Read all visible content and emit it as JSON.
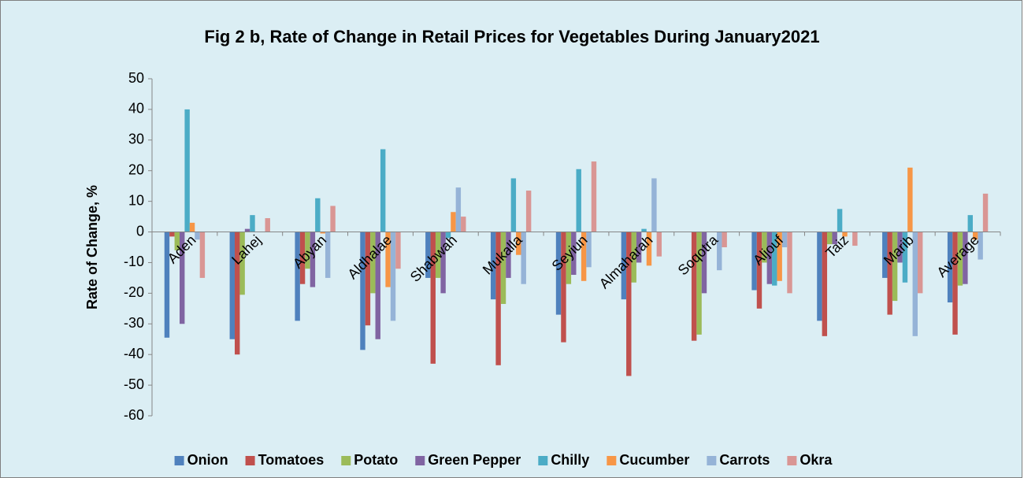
{
  "chart_data": {
    "type": "bar",
    "title": "Fig 2 b, Rate of Change in Retail Prices for Vegetables During January2021",
    "y_label": "Rate of Change, %",
    "categories": [
      "Aden",
      "Lahej",
      "Abyan",
      "Aldhalae",
      "Shabwah",
      "Mukalla",
      "Seyiun",
      "Almaharah",
      "Soqotra",
      "Aljouf",
      "Taiz",
      "Marib",
      "Average"
    ],
    "series": [
      {
        "name": "Onion",
        "color": "#4f81bd",
        "values": [
          -34.5,
          -35,
          -29,
          -38.5,
          -15,
          -22,
          -27,
          -22,
          0,
          -19,
          -29,
          -15,
          -23
        ]
      },
      {
        "name": "Tomatoes",
        "color": "#c0504d",
        "values": [
          -1.5,
          -40,
          -17,
          -30.5,
          -43,
          -43.5,
          -36,
          -47,
          -35.5,
          -25,
          -34,
          -27,
          -33.5
        ]
      },
      {
        "name": "Potato",
        "color": "#9bbb59",
        "values": [
          -6,
          -20.5,
          -12,
          -20,
          -15,
          -23.5,
          -17,
          -16.5,
          -33.5,
          -10,
          -4,
          -22.5,
          -17.5
        ]
      },
      {
        "name": "Green Pepper",
        "color": "#8064a2",
        "values": [
          -30,
          1,
          -18,
          -35,
          -20,
          -15,
          -14,
          -10,
          -20,
          -17,
          -4,
          -10,
          -17
        ]
      },
      {
        "name": "Chilly",
        "color": "#4bacc6",
        "values": [
          40,
          5.5,
          11,
          27,
          -2,
          17.5,
          20.5,
          1,
          0,
          -17.5,
          7.5,
          -16.5,
          5.5
        ]
      },
      {
        "name": "Cucumber",
        "color": "#f79646",
        "values": [
          3,
          0,
          -0.5,
          -18,
          6.5,
          -7.5,
          -16,
          -11,
          0,
          -16,
          -1.5,
          21,
          -2.5
        ]
      },
      {
        "name": "Carrots",
        "color": "#95b3d7",
        "values": [
          -2.5,
          0,
          -15,
          -29,
          14.5,
          -17,
          -11.5,
          17.5,
          -12.5,
          -5,
          0,
          -34,
          -9
        ]
      },
      {
        "name": "Okra",
        "color": "#d99694",
        "values": [
          -15,
          4.5,
          8.5,
          -12,
          5,
          13.5,
          23,
          -8,
          -5,
          -20,
          -4.5,
          -20,
          12.5
        ]
      }
    ],
    "ylim": [
      -60,
      50
    ],
    "yticks": [
      -60,
      -50,
      -40,
      -30,
      -20,
      -10,
      0,
      10,
      20,
      30,
      40,
      50
    ],
    "grid": false,
    "legend": "bottom"
  }
}
